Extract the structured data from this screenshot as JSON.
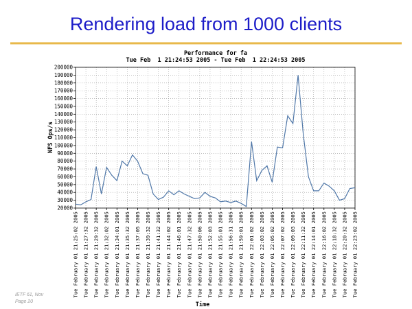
{
  "slide": {
    "title": "Rendering load from 1000 clients",
    "footer": [
      "IETF 61, Nov",
      "Page 20"
    ]
  },
  "chart_data": {
    "type": "line",
    "title": "Performance for fa",
    "subtitle": "Tue Feb  1 21:24:53 2005 - Tue Feb  1 22:24:53 2005",
    "y_label": "NFS Ops/s",
    "x_label": "Time",
    "categories": [
      "Tue February 01 21:25:02 2005",
      null,
      "Tue February 01 21:27:32 2005",
      null,
      "Tue February 01 21:29:32 2005",
      null,
      "Tue February 01 21:32:02 2005",
      null,
      "Tue February 01 21:34:01 2005",
      null,
      "Tue February 01 21:35:32 2005",
      null,
      "Tue February 01 21:37:05 2005",
      null,
      "Tue February 01 21:39:32 2005",
      null,
      "Tue February 01 21:41:32 2005",
      null,
      "Tue February 01 21:44:02 2005",
      null,
      "Tue February 01 21:46:01 2005",
      null,
      "Tue February 01 21:47:32 2005",
      null,
      "Tue February 01 21:50:06 2005",
      null,
      "Tue February 01 21:52:03 2005",
      null,
      "Tue February 01 21:55:01 2005",
      null,
      "Tue February 01 21:56:31 2005",
      null,
      "Tue February 01 21:59:01 2005",
      null,
      "Tue February 01 22:01:02 2005",
      null,
      "Tue February 01 22:03:02 2005",
      null,
      "Tue February 01 22:05:02 2005",
      null,
      "Tue February 01 22:07:02 2005",
      null,
      "Tue February 01 22:09:03 2005",
      null,
      "Tue February 01 22:11:32 2005",
      null,
      "Tue February 01 22:14:01 2005",
      null,
      "Tue February 01 22:16:02 2005",
      null,
      "Tue February 01 22:18:32 2005",
      null,
      "Tue February 01 22:20:32 2005",
      null,
      "Tue February 01 22:23:02 2005"
    ],
    "values": [
      25000,
      24000,
      28000,
      31000,
      73000,
      38000,
      72000,
      62000,
      55000,
      80000,
      74000,
      88000,
      80000,
      64000,
      62000,
      38000,
      31000,
      34000,
      42000,
      37000,
      42000,
      38000,
      35000,
      32000,
      33000,
      40000,
      35000,
      33000,
      28000,
      29000,
      27000,
      29000,
      26000,
      22000,
      105000,
      55000,
      68000,
      74000,
      53000,
      98000,
      97000,
      138000,
      128000,
      190000,
      115000,
      60000,
      42000,
      42000,
      52000,
      48000,
      42000,
      30000,
      32000,
      45000,
      46000
    ],
    "color": "#4f77a8",
    "ylim": [
      20000,
      200000
    ],
    "yticks": [
      20000,
      30000,
      40000,
      50000,
      60000,
      70000,
      80000,
      90000,
      100000,
      110000,
      120000,
      130000,
      140000,
      150000,
      160000,
      170000,
      180000,
      190000,
      200000
    ],
    "grid": true
  }
}
